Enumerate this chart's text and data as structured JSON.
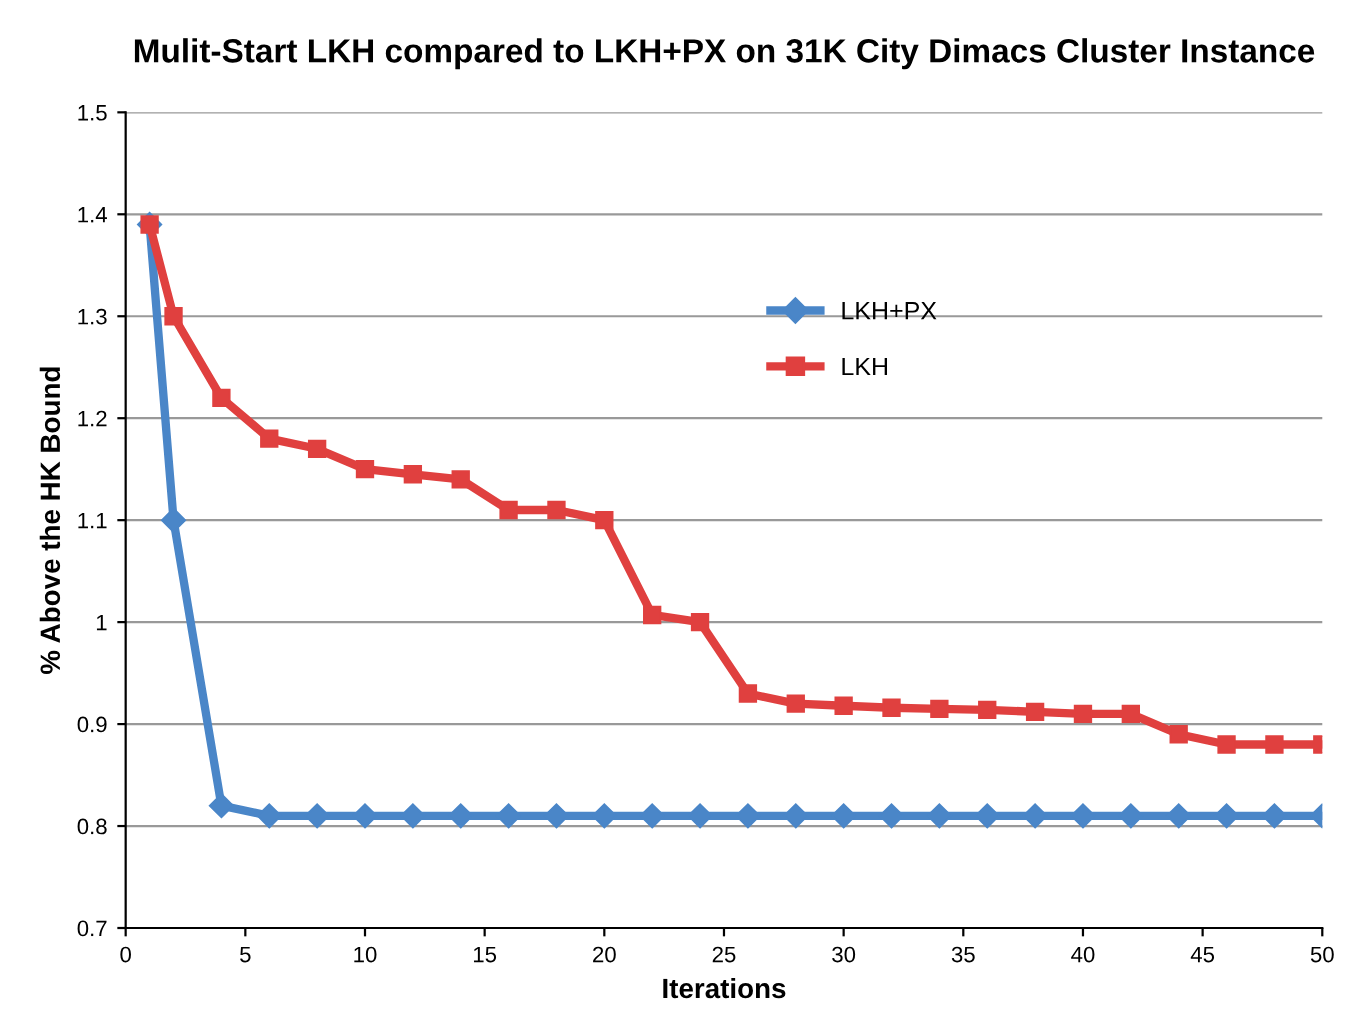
{
  "chart_data": {
    "type": "line",
    "title": "Mulit-Start LKH compared to LKH+PX on 31K City Dimacs Cluster Instance",
    "xlabel": "Iterations",
    "ylabel": "% Above the HK Bound",
    "x": [
      1,
      2,
      4,
      6,
      8,
      10,
      12,
      14,
      16,
      18,
      20,
      22,
      24,
      26,
      28,
      30,
      32,
      34,
      36,
      38,
      40,
      42,
      44,
      46,
      48,
      50
    ],
    "series": [
      {
        "name": "LKH+PX",
        "color": "#4a86c8",
        "marker": "diamond",
        "values": [
          1.39,
          1.1,
          0.82,
          0.81,
          0.81,
          0.81,
          0.81,
          0.81,
          0.81,
          0.81,
          0.81,
          0.81,
          0.81,
          0.81,
          0.81,
          0.81,
          0.81,
          0.81,
          0.81,
          0.81,
          0.81,
          0.81,
          0.81,
          0.81,
          0.81,
          0.81
        ]
      },
      {
        "name": "LKH",
        "color": "#e0403f",
        "marker": "square",
        "values": [
          1.39,
          1.3,
          1.22,
          1.18,
          1.17,
          1.15,
          1.145,
          1.14,
          1.11,
          1.11,
          1.1,
          1.007,
          1.0,
          0.93,
          0.92,
          0.918,
          0.916,
          0.915,
          0.914,
          0.912,
          0.91,
          0.91,
          0.89,
          0.88,
          0.88,
          0.88
        ]
      }
    ],
    "xlim": [
      0,
      50
    ],
    "xticks": [
      0,
      5,
      10,
      15,
      20,
      25,
      30,
      35,
      40,
      45,
      50
    ],
    "ylim": [
      0.7,
      1.5
    ],
    "yticks": [
      0.7,
      0.8,
      0.9,
      1,
      1.1,
      1.2,
      1.3,
      1.4,
      1.5
    ],
    "grid": "y",
    "legend": "center",
    "line_style": "solid"
  }
}
